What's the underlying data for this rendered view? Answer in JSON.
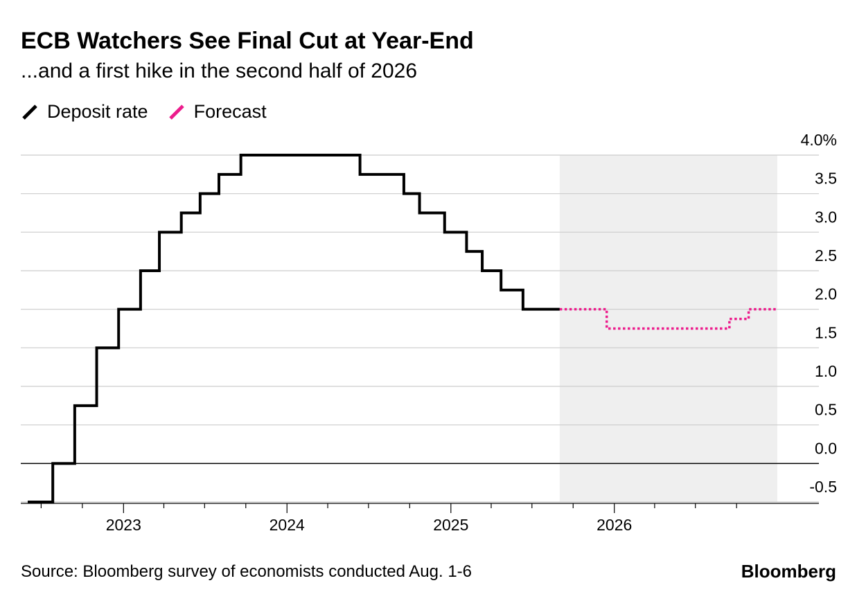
{
  "header": {
    "title": "ECB Watchers See Final Cut at Year-End",
    "subtitle": "...and a first hike in the second half of 2026"
  },
  "legend": [
    {
      "label": "Deposit rate",
      "color": "#000000"
    },
    {
      "label": "Forecast",
      "color": "#ec1c8c"
    }
  ],
  "footer": {
    "source": "Source: Bloomberg survey of economists conducted Aug. 1-6",
    "brand": "Bloomberg"
  },
  "chart_data": {
    "type": "line",
    "step": true,
    "y_axis": {
      "position": "right",
      "range": [
        -0.5,
        4.0
      ],
      "ticks": [
        4.0,
        3.5,
        3.0,
        2.5,
        2.0,
        1.5,
        1.0,
        0.5,
        0.0,
        -0.5
      ],
      "tick_labels": [
        "4.0%",
        "3.5",
        "3.0",
        "2.5",
        "2.0",
        "1.5",
        "1.0",
        "0.5",
        "0.0",
        "-0.5"
      ]
    },
    "x_axis": {
      "range": [
        "2022-06-01",
        "2027-01-01"
      ],
      "ticks": [
        "2023-01-01",
        "2024-01-01",
        "2025-01-01",
        "2026-01-01"
      ],
      "tick_labels": [
        "2023",
        "2024",
        "2025",
        "2026"
      ]
    },
    "forecast_region": {
      "start": "2025-09-01",
      "end": "2026-12-31",
      "color": "#efefef"
    },
    "series": [
      {
        "name": "Deposit rate",
        "color": "#000000",
        "style": "solid",
        "points": [
          {
            "x": "2022-06-01",
            "y": -0.5
          },
          {
            "x": "2022-07-27",
            "y": 0.0
          },
          {
            "x": "2022-09-14",
            "y": 0.75
          },
          {
            "x": "2022-11-02",
            "y": 1.5
          },
          {
            "x": "2022-12-21",
            "y": 2.0
          },
          {
            "x": "2023-02-08",
            "y": 2.5
          },
          {
            "x": "2023-03-22",
            "y": 3.0
          },
          {
            "x": "2023-05-10",
            "y": 3.25
          },
          {
            "x": "2023-06-21",
            "y": 3.5
          },
          {
            "x": "2023-08-02",
            "y": 3.75
          },
          {
            "x": "2023-09-20",
            "y": 4.0
          },
          {
            "x": "2024-06-12",
            "y": 3.75
          },
          {
            "x": "2024-09-18",
            "y": 3.5
          },
          {
            "x": "2024-10-23",
            "y": 3.25
          },
          {
            "x": "2024-12-18",
            "y": 3.0
          },
          {
            "x": "2025-02-05",
            "y": 2.75
          },
          {
            "x": "2025-03-12",
            "y": 2.5
          },
          {
            "x": "2025-04-23",
            "y": 2.25
          },
          {
            "x": "2025-06-11",
            "y": 2.0
          },
          {
            "x": "2025-09-01",
            "y": 2.0
          }
        ]
      },
      {
        "name": "Forecast",
        "color": "#ec1c8c",
        "style": "dotted",
        "points": [
          {
            "x": "2025-09-01",
            "y": 2.0
          },
          {
            "x": "2025-12-15",
            "y": 1.75
          },
          {
            "x": "2026-09-15",
            "y": 1.875
          },
          {
            "x": "2026-10-28",
            "y": 2.0
          },
          {
            "x": "2026-12-31",
            "y": 2.0
          }
        ]
      }
    ]
  }
}
